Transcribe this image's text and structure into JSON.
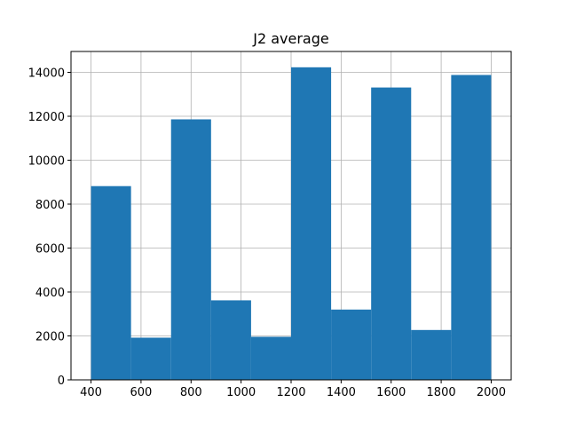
{
  "chart_data": {
    "type": "bar",
    "title": "J2 average",
    "xlabel": "",
    "ylabel": "",
    "bin_edges": [
      400,
      560,
      720,
      880,
      1040,
      1200,
      1360,
      1520,
      1680,
      1840,
      2000
    ],
    "values": [
      8820,
      1920,
      11860,
      3620,
      1960,
      14230,
      3200,
      13310,
      2270,
      13880
    ],
    "xlim": [
      320,
      2080
    ],
    "ylim": [
      0,
      14950
    ],
    "x_ticks": [
      400,
      600,
      800,
      1000,
      1200,
      1400,
      1600,
      1800,
      2000
    ],
    "y_ticks": [
      0,
      2000,
      4000,
      6000,
      8000,
      10000,
      12000,
      14000
    ],
    "grid": true,
    "bar_color": "#1f77b4",
    "grid_color": "#b0b0b0"
  }
}
